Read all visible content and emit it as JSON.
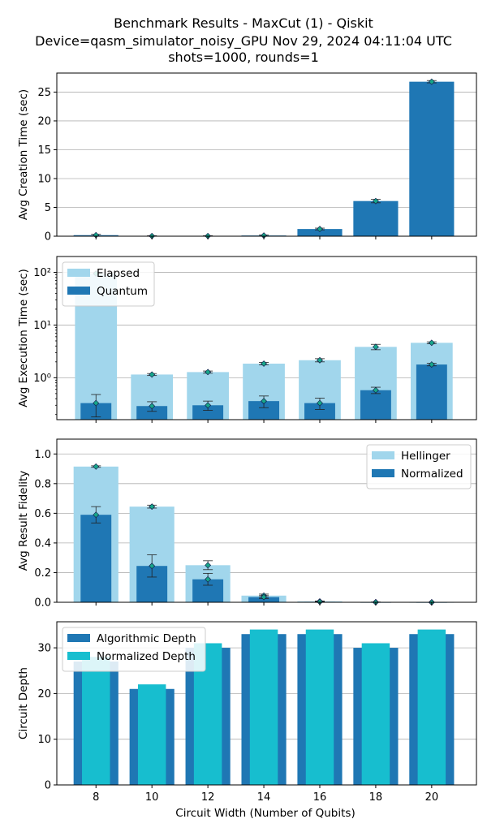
{
  "title": {
    "line1": "Benchmark Results - MaxCut (1) - Qiskit",
    "line2": "Device=qasm_simulator_noisy_GPU  Nov 29, 2024 04:11:04 UTC",
    "line3": "shots=1000, rounds=1"
  },
  "xlabel": "Circuit Width (Number of Qubits)",
  "chart_data": [
    {
      "type": "bar",
      "name": "creation",
      "ylabel": "Avg Creation Time (sec)",
      "ylim": [
        0,
        28.3
      ],
      "yscale": "linear",
      "yticks": [
        0,
        5,
        10,
        15,
        20,
        25
      ],
      "grid": true,
      "x": [
        8,
        10,
        12,
        14,
        16,
        18,
        20
      ],
      "xlim": [
        6.6,
        21.6
      ],
      "series": [
        {
          "values": [
            0.18,
            0.03,
            0.03,
            0.12,
            1.25,
            6.1,
            26.8
          ],
          "err": [
            0.15,
            0.05,
            0.05,
            0.1,
            0.15,
            0.3,
            0.2
          ],
          "color": "#1f77b4",
          "width": 1.6
        }
      ]
    },
    {
      "type": "bar",
      "name": "execution",
      "ylabel": "Avg Execution Time (sec)",
      "yscale": "log",
      "ylim": [
        0.16,
        200
      ],
      "yticks": [
        1,
        10,
        100
      ],
      "yticklabels": [
        "10⁰",
        "10¹",
        "10²"
      ],
      "grid": true,
      "legend": "top-left",
      "x": [
        8,
        10,
        12,
        14,
        16,
        18,
        20
      ],
      "xlim": [
        6.6,
        21.6
      ],
      "series": [
        {
          "name": "Elapsed",
          "values": [
            95,
            1.15,
            1.28,
            1.85,
            2.15,
            3.85,
            4.6
          ],
          "err": [
            0,
            0.05,
            0.06,
            0.1,
            0.15,
            0.45,
            0.2
          ],
          "color": "#a1d6ec",
          "width": 1.5
        },
        {
          "name": "Quantum",
          "values": [
            0.33,
            0.29,
            0.3,
            0.36,
            0.33,
            0.58,
            1.78
          ],
          "err": [
            0.15,
            0.06,
            0.06,
            0.09,
            0.08,
            0.08,
            0.1
          ],
          "color": "#1f77b4",
          "width": 1.1
        }
      ]
    },
    {
      "type": "bar",
      "name": "fidelity",
      "ylabel": "Avg Result Fidelity",
      "yscale": "linear",
      "ylim": [
        0,
        1.1
      ],
      "yticks": [
        0,
        0.2,
        0.4,
        0.6,
        0.8,
        1.0
      ],
      "yticklabels": [
        "0.0",
        "0.2",
        "0.4",
        "0.6",
        "0.8",
        "1.0"
      ],
      "grid": true,
      "legend": "top-right",
      "x": [
        8,
        10,
        12,
        14,
        16,
        18,
        20
      ],
      "xlim": [
        6.6,
        21.6
      ],
      "series": [
        {
          "name": "Hellinger",
          "values": [
            0.915,
            0.645,
            0.25,
            0.045,
            0.006,
            0.001,
            0.0
          ],
          "err": [
            0.005,
            0.01,
            0.03,
            0.01,
            0.003,
            0.001,
            0.0
          ],
          "color": "#a1d6ec",
          "width": 1.6
        },
        {
          "name": "Normalized",
          "values": [
            0.59,
            0.245,
            0.155,
            0.035,
            0.003,
            0.0,
            0.0
          ],
          "err": [
            0.055,
            0.075,
            0.04,
            0.01,
            0.002,
            0.0,
            0.0
          ],
          "color": "#1f77b4",
          "width": 1.1
        }
      ]
    },
    {
      "type": "bar",
      "name": "depth",
      "ylabel": "Circuit Depth",
      "xlabel": "Circuit Width (Number of Qubits)",
      "yscale": "linear",
      "ylim": [
        0,
        35.7
      ],
      "yticks": [
        0,
        10,
        20,
        30
      ],
      "grid": true,
      "legend": "top-left",
      "x": [
        8,
        10,
        12,
        14,
        16,
        18,
        20
      ],
      "xlim": [
        6.6,
        21.6
      ],
      "series": [
        {
          "name": "Algorithmic Depth",
          "values": [
            27,
            21,
            30,
            33,
            33,
            30,
            33
          ],
          "color": "#1f77b4",
          "width": 1.6
        },
        {
          "name": "Normalized Depth",
          "values": [
            28,
            22,
            31,
            34,
            34,
            31,
            34
          ],
          "color": "#17becf",
          "width": 1.0
        }
      ]
    }
  ]
}
